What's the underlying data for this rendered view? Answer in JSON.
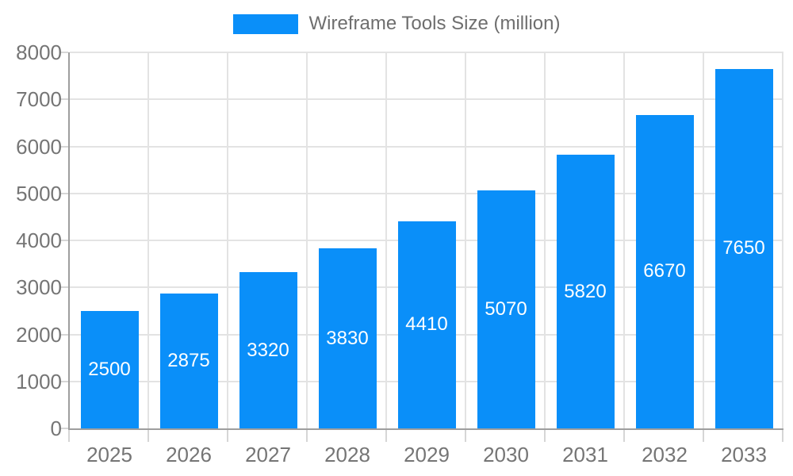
{
  "legend": {
    "label": "Wireframe Tools Size (million)"
  },
  "colors": {
    "bar": "#0a8ff9",
    "grid": "#e3e3e3",
    "axis": "#9e9e9e",
    "tick": "#d6d6d6",
    "axis_text": "#757575",
    "title_text": "#6e6e6e",
    "value_text": "#ffffff",
    "background": "#ffffff"
  },
  "chart_data": {
    "type": "bar",
    "title": "Wireframe Tools Size (million)",
    "categories": [
      "2025",
      "2026",
      "2027",
      "2028",
      "2029",
      "2030",
      "2031",
      "2032",
      "2033"
    ],
    "values": [
      2500,
      2875,
      3320,
      3830,
      4410,
      5070,
      5820,
      6670,
      7650
    ],
    "xlabel": "",
    "ylabel": "",
    "ylim": [
      0,
      8000
    ],
    "ytick_step": 1000,
    "yticks": [
      0,
      1000,
      2000,
      3000,
      4000,
      5000,
      6000,
      7000,
      8000
    ],
    "grid": true,
    "legend_position": "top",
    "value_labels": "inside-center"
  }
}
